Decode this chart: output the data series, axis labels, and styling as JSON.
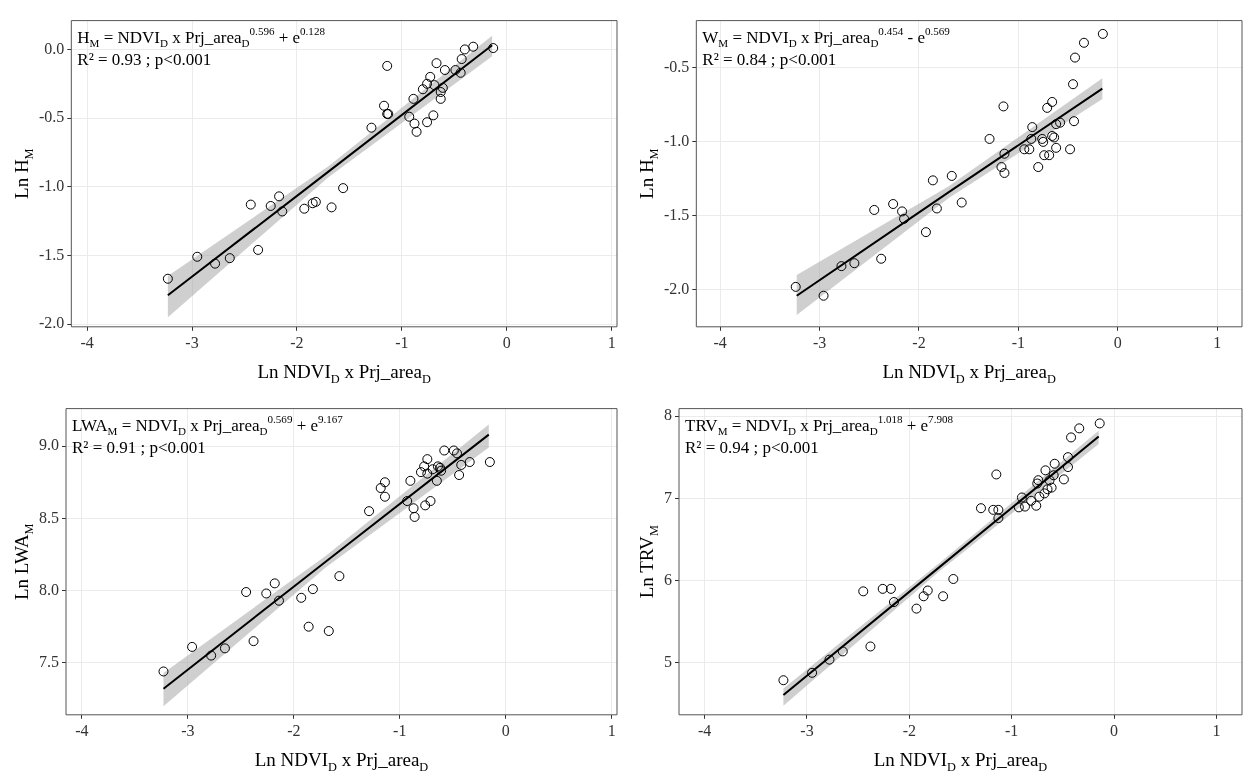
{
  "chart_data": [
    {
      "type": "scatter",
      "xlabel": "Ln NDVI$_{D}$ x Prj_area$_{D}$",
      "ylabel": "Ln H$_{M}$",
      "annotations": [
        "H$_{M}$ = NDVI$_{D}$ x Prj_area$_{D}$$^{0.596}$ + e$^{0.128}$",
        "R² = 0.93 ; p<0.001"
      ],
      "xlim": [
        -4.15,
        1.05
      ],
      "xticks": [
        -4,
        -3,
        -2,
        -1,
        0,
        1
      ],
      "ylim": [
        -2.02,
        0.21
      ],
      "yticks": [
        {
          "value": -2,
          "label": "-2.0"
        },
        -1.5,
        {
          "value": -1,
          "label": "-1.0"
        },
        -0.5,
        {
          "value": 0,
          "label": "0.0"
        }
      ],
      "grid": true,
      "series": [
        {
          "marker": "circle",
          "color": "#000000",
          "x": [
            -3.23,
            -2.95,
            -2.78,
            -2.64,
            -2.44,
            -2.37,
            -2.25,
            -2.17,
            -2.14,
            -1.93,
            -1.85,
            -1.82,
            -1.67,
            -1.56,
            -1.29,
            -1.17,
            -1.14,
            -1.14,
            -1.13,
            -0.93,
            -0.89,
            -0.88,
            -0.86,
            -0.8,
            -0.76,
            -0.76,
            -0.73,
            -0.7,
            -0.67,
            -0.69,
            -0.63,
            -0.61,
            -0.59,
            -0.63,
            -0.49,
            -0.44,
            -0.43,
            -0.4,
            -0.32,
            -0.13
          ],
          "values": [
            -1.67,
            -1.51,
            -1.56,
            -1.52,
            -1.13,
            -1.46,
            -1.14,
            -1.07,
            -1.18,
            -1.16,
            -1.12,
            -1.11,
            -1.15,
            -1.01,
            -0.57,
            -0.41,
            -0.12,
            -0.47,
            -0.47,
            -0.49,
            -0.36,
            -0.54,
            -0.6,
            -0.29,
            -0.53,
            -0.25,
            -0.2,
            -0.48,
            -0.1,
            -0.26,
            -0.36,
            -0.28,
            -0.15,
            -0.31,
            -0.15,
            -0.17,
            -0.07,
            0,
            0.02,
            0.01
          ]
        },
        {
          "type": "line",
          "marker": "none",
          "color": "#000000",
          "x": [
            -3.23,
            -1.7,
            -0.14
          ],
          "values": [
            -1.79,
            -0.89,
            0.03
          ],
          "lower": [
            -1.95,
            -0.93,
            -0.05
          ],
          "upper": [
            -1.65,
            -0.85,
            0.1
          ]
        }
      ]
    },
    {
      "type": "scatter",
      "xlabel": "Ln NDVI$_{D}$ x Prj_area$_{D}$",
      "ylabel": "Ln H$_{M}$",
      "annotations": [
        "W$_{M}$ = NDVI$_{D}$ x Prj_area$_{D}$$^{0.454}$ - e$^{0.569}$",
        "R² = 0.84 ; p<0.001"
      ],
      "xlim": [
        -4.24,
        1.25
      ],
      "xticks": [
        -4,
        -3,
        -2,
        -1,
        0,
        1
      ],
      "ylim": [
        -2.25,
        -0.18
      ],
      "yticks": [
        {
          "value": -2,
          "label": "-2.0"
        },
        -1.5,
        {
          "value": -1,
          "label": "-1.0"
        },
        -0.5
      ],
      "grid": true,
      "series": [
        {
          "marker": "circle",
          "color": "#000000",
          "x": [
            -3.24,
            -2.96,
            -2.78,
            -2.65,
            -2.45,
            -2.38,
            -2.26,
            -2.17,
            -2.15,
            -1.93,
            -1.86,
            -1.82,
            -1.67,
            -1.57,
            -1.29,
            -1.17,
            -1.15,
            -1.14,
            -1.14,
            -0.94,
            -0.89,
            -0.87,
            -0.86,
            -0.8,
            -0.76,
            -0.75,
            -0.74,
            -0.71,
            -0.69,
            -0.66,
            -0.66,
            -0.64,
            -0.62,
            -0.62,
            -0.58,
            -0.48,
            -0.45,
            -0.44,
            -0.43,
            -0.34,
            -0.15
          ],
          "values": [
            -1.98,
            -2.04,
            -1.84,
            -1.82,
            -1.46,
            -1.79,
            -1.42,
            -1.47,
            -1.52,
            -1.61,
            -1.26,
            -1.45,
            -1.23,
            -1.41,
            -0.98,
            -1.17,
            -0.76,
            -1.21,
            -1.08,
            -1.05,
            -1.05,
            -0.98,
            -0.9,
            -1.17,
            -0.98,
            -1,
            -1.09,
            -0.77,
            -1.09,
            -0.73,
            -0.96,
            -0.97,
            -1.04,
            -0.88,
            -0.87,
            -1.05,
            -0.61,
            -0.86,
            -0.43,
            -0.33,
            -0.27
          ]
        },
        {
          "type": "line",
          "marker": "none",
          "color": "#000000",
          "x": [
            -3.23,
            -1.7,
            -0.155
          ],
          "values": [
            -2.04,
            -1.34,
            -0.64
          ],
          "lower": [
            -2.17,
            -1.38,
            -0.71
          ],
          "upper": [
            -1.9,
            -1.3,
            -0.57
          ]
        }
      ]
    },
    {
      "type": "scatter",
      "xlabel": "Ln NDVI$_{D}$ x Prj_area$_{D}$",
      "ylabel": "Ln LWA$_{M}$",
      "annotations": [
        "LWA$_{M}$ = NDVI$_{D}$ x Prj_area$_{D}$$^{0.569}$ + e$^{9.167}$",
        "R² = 0.91 ; p<0.001"
      ],
      "xlim": [
        -4.15,
        1.05
      ],
      "xticks": [
        -4,
        -3,
        -2,
        -1,
        0,
        1
      ],
      "ylim": [
        7.14,
        9.26
      ],
      "yticks": [
        7.5,
        {
          "value": 8,
          "label": "8.0"
        },
        8.5,
        {
          "value": 9,
          "label": "9.0"
        }
      ],
      "grid": true,
      "series": [
        {
          "marker": "circle",
          "color": "#000000",
          "x": [
            -3.23,
            -2.96,
            -2.78,
            -2.65,
            -2.45,
            -2.38,
            -2.26,
            -2.18,
            -2.14,
            -1.93,
            -1.86,
            -1.82,
            -1.67,
            -1.57,
            -1.29,
            -1.18,
            -1.14,
            -1.14,
            -0.93,
            -0.9,
            -0.87,
            -0.86,
            -0.8,
            -0.76,
            -0.74,
            -0.77,
            -0.74,
            -0.71,
            -0.69,
            -0.65,
            -0.64,
            -0.62,
            -0.61,
            -0.58,
            -0.49,
            -0.46,
            -0.44,
            -0.42,
            -0.34,
            -0.15
          ],
          "values": [
            7.44,
            7.61,
            7.55,
            7.6,
            7.99,
            7.65,
            7.98,
            8.05,
            7.93,
            7.95,
            7.75,
            8.01,
            7.72,
            8.1,
            8.55,
            8.71,
            8.75,
            8.65,
            8.62,
            8.76,
            8.57,
            8.51,
            8.82,
            8.59,
            8.91,
            8.86,
            8.81,
            8.62,
            8.84,
            8.76,
            8.86,
            8.85,
            8.83,
            8.97,
            8.97,
            8.95,
            8.8,
            8.87,
            8.89,
            8.89
          ]
        },
        {
          "type": "line",
          "marker": "none",
          "color": "#000000",
          "x": [
            -3.23,
            -1.7,
            -0.16
          ],
          "values": [
            7.32,
            8.2,
            9.08
          ],
          "lower": [
            7.2,
            8.16,
            8.99
          ],
          "upper": [
            7.43,
            8.24,
            9.15
          ]
        }
      ]
    },
    {
      "type": "scatter",
      "xlabel": "Ln NDVI$_{D}$ x Prj_area$_{D}$",
      "ylabel": "Ln TRV$_{M}$",
      "annotations": [
        "TRV$_{M}$ = NDVI$_{D}$ x Prj_area$_{D}$$^{1.018}$ + e$^{7.908}$",
        "R² = 0.94 ; p<0.001"
      ],
      "xlim": [
        -4.25,
        1.25
      ],
      "xticks": [
        -4,
        -3,
        -2,
        -1,
        0,
        1
      ],
      "ylim": [
        4.37,
        8.09
      ],
      "yticks": [
        5,
        6,
        7,
        8
      ],
      "grid": true,
      "series": [
        {
          "marker": "circle",
          "color": "#000000",
          "x": [
            -3.23,
            -2.95,
            -2.78,
            -2.65,
            -2.45,
            -2.38,
            -2.26,
            -2.18,
            -2.15,
            -1.93,
            -1.86,
            -1.82,
            -1.67,
            -1.57,
            -1.3,
            -1.18,
            -1.15,
            -1.13,
            -1.13,
            -0.93,
            -0.9,
            -0.87,
            -0.81,
            -0.76,
            -0.75,
            -0.74,
            -0.73,
            -0.68,
            -0.67,
            -0.65,
            -0.63,
            -0.61,
            -0.59,
            -0.58,
            -0.49,
            -0.45,
            -0.45,
            -0.42,
            -0.34,
            -0.14
          ],
          "values": [
            4.79,
            4.88,
            5.04,
            5.14,
            5.87,
            5.2,
            5.9,
            5.9,
            5.74,
            5.66,
            5.81,
            5.88,
            5.81,
            6.02,
            6.88,
            6.86,
            7.29,
            6.86,
            6.76,
            6.89,
            7.01,
            6.9,
            6.97,
            6.91,
            7.18,
            7.22,
            7.02,
            7.06,
            7.34,
            7.11,
            7.22,
            7.13,
            7.28,
            7.42,
            7.23,
            7.38,
            7.5,
            7.74,
            7.85,
            7.91
          ]
        },
        {
          "type": "line",
          "marker": "none",
          "color": "#000000",
          "x": [
            -3.23,
            -1.7,
            -0.15
          ],
          "values": [
            4.61,
            6.17,
            7.75
          ],
          "lower": [
            4.48,
            6.12,
            7.66
          ],
          "upper": [
            4.69,
            6.22,
            7.82
          ]
        }
      ]
    }
  ]
}
